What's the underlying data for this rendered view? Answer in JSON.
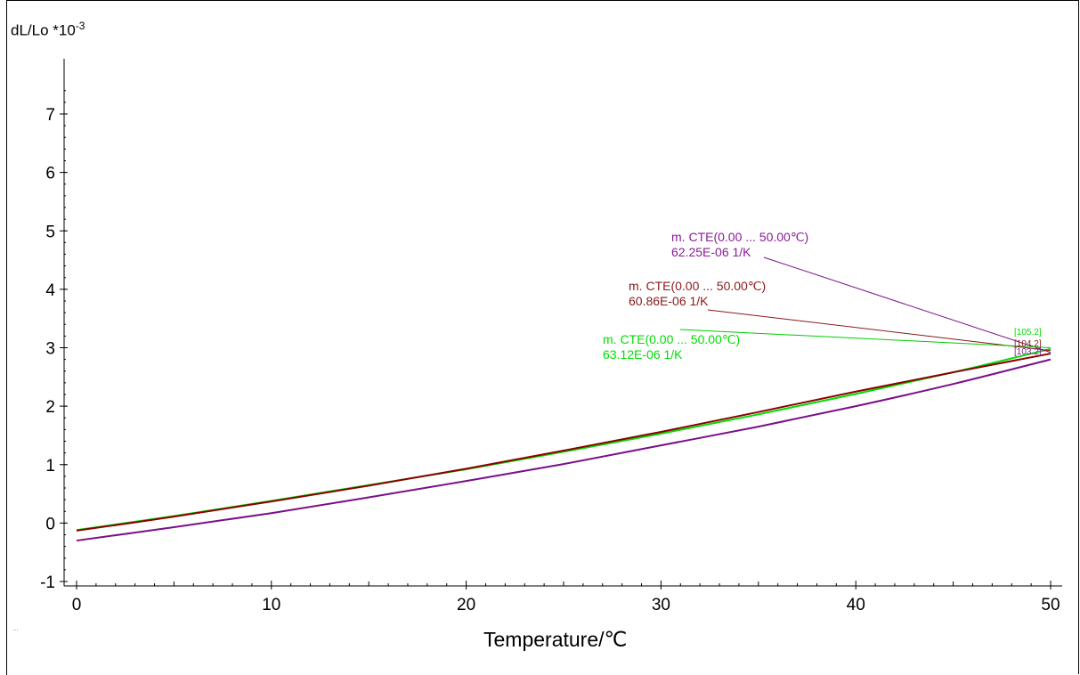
{
  "footnote": "…",
  "chart_data": {
    "type": "line",
    "ylabel": "dL/Lo *10",
    "ylabel_exponent": "-3",
    "xlabel": "Temperature/℃",
    "xlim": [
      0,
      50
    ],
    "ylim": [
      -1,
      8
    ],
    "xticks": [
      "0",
      "10",
      "20",
      "30",
      "40",
      "50"
    ],
    "yticks": [
      "-1",
      "0",
      "1",
      "2",
      "3",
      "4",
      "5",
      "6",
      "7"
    ],
    "x": [
      0,
      5,
      10,
      15,
      20,
      25,
      30,
      35,
      40,
      45,
      50
    ],
    "series": [
      {
        "color": "#00dd00",
        "values": [
          -0.12,
          0.12,
          0.38,
          0.65,
          0.92,
          1.22,
          1.53,
          1.86,
          2.21,
          2.58,
          2.98
        ]
      },
      {
        "color": "#8b0000",
        "values": [
          -0.13,
          0.11,
          0.37,
          0.64,
          0.93,
          1.24,
          1.56,
          1.9,
          2.25,
          2.58,
          2.9
        ]
      },
      {
        "color": "#7a0f8a",
        "values": [
          -0.3,
          -0.07,
          0.17,
          0.44,
          0.72,
          1.01,
          1.33,
          1.65,
          2.0,
          2.38,
          2.8
        ]
      }
    ],
    "annotations": [
      {
        "color": "#8b1a9b",
        "line1": "m. CTE(0.00 ... 50.00℃)",
        "line2": "62.25E-06 1/K",
        "marker": "[103.2]",
        "anchor": [
          50,
          2.92
        ]
      },
      {
        "color": "#8b1a1a",
        "line1": "m. CTE(0.00 ... 50.00℃)",
        "line2": "60.86E-06 1/K",
        "marker": "[104.2]",
        "anchor": [
          50,
          2.95
        ]
      },
      {
        "color": "#00dd00",
        "line1": "m. CTE(0.00 ... 50.00℃)",
        "line2": "63.12E-06 1/K",
        "marker": "[105.2]",
        "anchor": [
          50,
          3.0
        ]
      }
    ]
  }
}
